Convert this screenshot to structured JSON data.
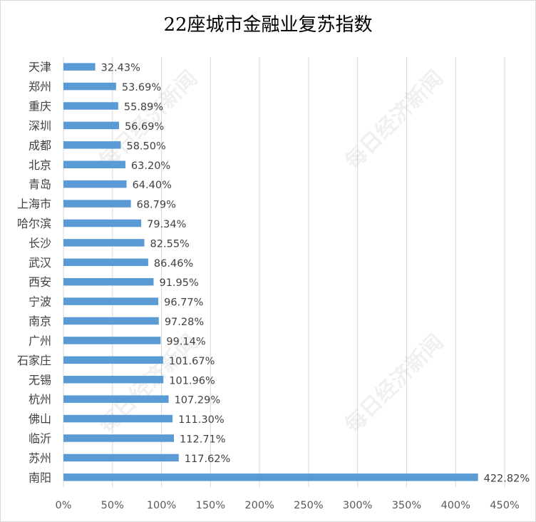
{
  "chart_data": {
    "type": "bar",
    "orientation": "horizontal",
    "title": "22座城市金融业复苏指数",
    "categories": [
      "天津",
      "郑州",
      "重庆",
      "深圳",
      "成都",
      "北京",
      "青岛",
      "上海市",
      "哈尔滨",
      "长沙",
      "武汉",
      "西安",
      "宁波",
      "南京",
      "广州",
      "石家庄",
      "无锡",
      "杭州",
      "佛山",
      "临沂",
      "苏州",
      "南阳"
    ],
    "values": [
      32.43,
      53.69,
      55.89,
      56.69,
      58.5,
      63.2,
      64.4,
      68.79,
      79.34,
      82.55,
      86.46,
      91.95,
      96.77,
      97.28,
      99.14,
      101.67,
      101.96,
      107.29,
      111.3,
      112.71,
      117.62,
      422.82
    ],
    "value_labels": [
      "32.43%",
      "53.69%",
      "55.89%",
      "56.69%",
      "58.50%",
      "63.20%",
      "64.40%",
      "68.79%",
      "79.34%",
      "82.55%",
      "86.46%",
      "91.95%",
      "96.77%",
      "97.28%",
      "99.14%",
      "101.67%",
      "101.96%",
      "107.29%",
      "111.30%",
      "112.71%",
      "117.62%",
      "422.82%"
    ],
    "xlim": [
      0,
      450
    ],
    "xticks": [
      0,
      50,
      100,
      150,
      200,
      250,
      300,
      350,
      400,
      450
    ],
    "xtick_labels": [
      "0%",
      "50%",
      "100%",
      "150%",
      "200%",
      "250%",
      "300%",
      "350%",
      "400%",
      "450%"
    ],
    "xlabel": "",
    "ylabel": "",
    "grid": true,
    "bar_color": "#5b9bd5",
    "grid_color": "#d9d9d9"
  },
  "watermark": "每日经济新闻"
}
